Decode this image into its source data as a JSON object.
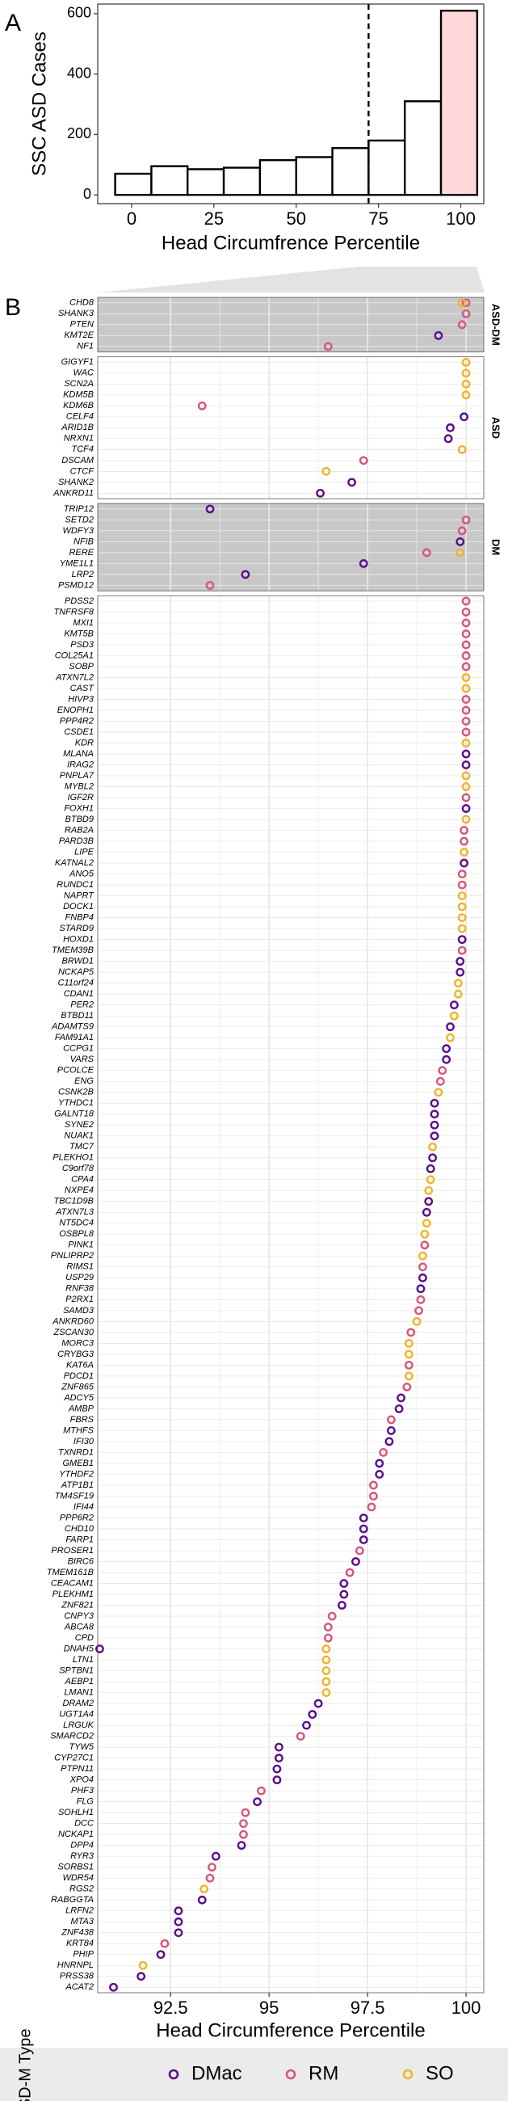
{
  "chart_data": [
    {
      "type": "histogram",
      "panel_label": "A",
      "bins": [
        -5,
        6,
        17,
        28,
        39,
        50,
        61,
        72,
        83,
        94,
        105
      ],
      "values": [
        70,
        95,
        85,
        90,
        115,
        125,
        155,
        180,
        310,
        610
      ],
      "colors": [
        "#ffffff",
        "#ffffff",
        "#ffffff",
        "#ffffff",
        "#ffffff",
        "#ffffff",
        "#ffffff",
        "#ffffff",
        "#ffffff",
        "#ffd9d9"
      ],
      "edge_color": "#000000",
      "vline": 72,
      "xlim": [
        -10.3,
        107
      ],
      "xticks": [
        0,
        25,
        50,
        75,
        100
      ],
      "ylim": [
        -29,
        632
      ],
      "yticks": [
        0,
        200,
        400,
        600
      ],
      "xlabel": "Head Circumfrence Percentile",
      "ylabel": "SSC ASD Cases"
    },
    {
      "type": "dot",
      "panel_label": "B",
      "series": [
        {
          "name": "DMac",
          "color": "#5b0f8a"
        },
        {
          "name": "RM",
          "color": "#d4587a"
        },
        {
          "name": "SO",
          "color": "#f0b429"
        }
      ],
      "facets": [
        {
          "label": "ASD-DM",
          "background": "#c8c8c8",
          "categories": [
            "CHD8",
            "SHANK3",
            "PTEN",
            "KMT2E",
            "NF1"
          ],
          "series": [
            {
              "values": [
                null,
                null,
                null,
                99.3,
                null
              ]
            },
            {
              "values": [
                100,
                100,
                99.9,
                null,
                96.5
              ]
            },
            {
              "values": [
                99.9,
                null,
                null,
                null,
                null
              ]
            }
          ]
        },
        {
          "label": "ASD",
          "background": "#ffffff",
          "categories": [
            "GIGYF1",
            "WAC",
            "SCN2A",
            "KDM5B",
            "KDM6B",
            "CELF4",
            "ARID1B",
            "NRXN1",
            "TCF4",
            "DSCAM",
            "CTCF",
            "SHANK2",
            "ANKRD11"
          ],
          "series": [
            {
              "values": [
                null,
                null,
                null,
                null,
                null,
                99.95,
                99.6,
                99.55,
                null,
                null,
                null,
                97.1,
                96.3
              ]
            },
            {
              "values": [
                null,
                null,
                null,
                null,
                93.3,
                null,
                null,
                null,
                null,
                97.4,
                null,
                null,
                null
              ]
            },
            {
              "values": [
                100,
                100,
                100,
                100,
                null,
                null,
                null,
                null,
                99.9,
                null,
                96.45,
                null,
                null
              ]
            }
          ]
        },
        {
          "label": "DM",
          "background": "#c8c8c8",
          "categories": [
            "TRIP12",
            "SETD2",
            "WDFY3",
            "NFIB",
            "RERE",
            "YME1L1",
            "LRP2",
            "PSMD12"
          ],
          "series": [
            {
              "values": [
                93.5,
                null,
                null,
                99.85,
                null,
                97.4,
                94.4,
                null
              ]
            },
            {
              "values": [
                null,
                100,
                99.9,
                null,
                99,
                null,
                null,
                93.5
              ]
            },
            {
              "values": [
                null,
                null,
                null,
                null,
                99.85,
                null,
                null,
                null
              ]
            }
          ]
        },
        {
          "background": "#ffffff",
          "categories": [
            "PDSS2",
            "TNFRSF8",
            "MXI1",
            "KMT5B",
            "PSD3",
            "COL25A1",
            "SOBP",
            "ATXN7L2",
            "CAST",
            "HIVP3",
            "ENOPH1",
            "PPP4R2",
            "CSDE1",
            "KDR",
            "MLANA",
            "IRAG2",
            "PNPLA7",
            "MYBL2",
            "IGF2R",
            "FOXH1",
            "BTBD9",
            "RAB2A",
            "PARD3B",
            "LIPE",
            "KATNAL2",
            "ANO5",
            "RUNDC1",
            "NAPRT",
            "DOCK1",
            "FNBP4",
            "STARD9",
            "HOXD1",
            "TMEM39B",
            "BRWD1",
            "NCKAP5",
            "C11orf24",
            "CDAN1",
            "PER2",
            "BTBD11",
            "ADAMTS9",
            "FAM91A1",
            "CCPG1",
            "VARS",
            "PCOLCE",
            "ENG",
            "CSNK2B",
            "YTHDC1",
            "GALNT18",
            "SYNE2",
            "NUAK1",
            "TMC7",
            "PLEKHO1",
            "C9orf78",
            "CPA4",
            "NXPE4",
            "TBC1D9B",
            "ATXN7L3",
            "NT5DC4",
            "OSBPL8",
            "PINK1",
            "PNLIPRP2",
            "RIMS1",
            "USP29",
            "RNF38",
            "P2RX1",
            "SAMD3",
            "ANKRD60",
            "ZSCAN30",
            "MORC3",
            "CRYBG3",
            "KAT6A",
            "PDCD1",
            "ZNF865",
            "ADCY5",
            "AMBP",
            "FBRS",
            "MTHFS",
            "IFI30",
            "TXNRD1",
            "GMEB1",
            "YTHDF2",
            "ATP1B1",
            "TM4SF19",
            "IFI44",
            "PPP6R2",
            "CHD10",
            "FARP1",
            "PROSER1",
            "BIRC6",
            "TMEM161B",
            "CEACAM1",
            "PLEKHM1",
            "ZNF821",
            "CNPY3",
            "ABCA8",
            "CPD",
            "DNAH5",
            "LTN1",
            "SPTBN1",
            "AEBP1",
            "LMAN1",
            "DRAM2",
            "UGT1A4",
            "LRGUK",
            "SMARCD2",
            "TYW5",
            "CYP27C1",
            "PTPN11",
            "XPO4",
            "PHF3",
            "FLG",
            "SOHLH1",
            "DCC",
            "NCKAP1",
            "DPP4",
            "RYR3",
            "SORBS1",
            "WDR54",
            "RGS2",
            "RABGGTA",
            "LRFN2",
            "MTA3",
            "ZNF438",
            "KRT84",
            "PHIP",
            "HNRNPL",
            "PRSS38",
            "ACAT2"
          ],
          "series": [
            {
              "values": [
                null,
                null,
                null,
                null,
                null,
                null,
                null,
                null,
                null,
                null,
                null,
                null,
                null,
                null,
                100,
                100,
                null,
                null,
                null,
                100,
                null,
                null,
                null,
                null,
                99.95,
                null,
                null,
                null,
                null,
                null,
                null,
                99.9,
                null,
                99.85,
                99.85,
                null,
                null,
                99.7,
                null,
                99.6,
                null,
                99.5,
                99.5,
                null,
                null,
                null,
                99.2,
                99.2,
                99.2,
                99.2,
                null,
                99.15,
                99.1,
                null,
                null,
                99.05,
                99,
                null,
                null,
                null,
                null,
                null,
                98.9,
                98.85,
                null,
                null,
                null,
                null,
                null,
                null,
                null,
                null,
                null,
                98.35,
                98.3,
                null,
                98.1,
                98.05,
                null,
                97.8,
                97.8,
                null,
                null,
                null,
                97.4,
                97.4,
                97.4,
                null,
                97.2,
                null,
                96.9,
                96.9,
                96.85,
                null,
                null,
                null,
                90.7,
                null,
                null,
                null,
                null,
                96.25,
                96.1,
                95.95,
                null,
                95.25,
                95.25,
                95.2,
                95.2,
                null,
                94.7,
                null,
                null,
                null,
                94.3,
                93.65,
                null,
                null,
                null,
                93.3,
                92.7,
                92.7,
                92.7,
                null,
                92.25,
                null,
                91.75,
                91.05
              ]
            },
            {
              "values": [
                100,
                100,
                100,
                100,
                100,
                100,
                100,
                null,
                null,
                100,
                100,
                100,
                100,
                null,
                null,
                null,
                null,
                null,
                100,
                null,
                null,
                99.95,
                99.95,
                null,
                null,
                99.9,
                99.9,
                null,
                null,
                null,
                null,
                null,
                99.9,
                null,
                null,
                null,
                null,
                null,
                null,
                null,
                null,
                null,
                null,
                99.4,
                99.35,
                null,
                null,
                null,
                null,
                null,
                null,
                null,
                null,
                null,
                null,
                null,
                null,
                null,
                null,
                98.95,
                null,
                98.9,
                null,
                null,
                98.85,
                98.8,
                null,
                98.6,
                null,
                null,
                98.55,
                null,
                98.5,
                null,
                null,
                98.1,
                null,
                null,
                97.9,
                null,
                null,
                97.65,
                97.65,
                97.6,
                null,
                null,
                null,
                97.3,
                null,
                97.05,
                null,
                null,
                null,
                96.6,
                96.5,
                96.5,
                null,
                null,
                null,
                null,
                null,
                null,
                null,
                null,
                95.8,
                null,
                null,
                null,
                null,
                94.8,
                null,
                94.4,
                94.35,
                94.35,
                null,
                null,
                93.55,
                93.5,
                null,
                null,
                null,
                null,
                null,
                92.35,
                null,
                null,
                null,
                null
              ]
            },
            {
              "values": [
                null,
                null,
                null,
                null,
                null,
                null,
                null,
                100,
                100,
                null,
                null,
                null,
                null,
                100,
                null,
                null,
                100,
                100,
                null,
                null,
                100,
                null,
                null,
                99.95,
                null,
                null,
                null,
                99.9,
                99.9,
                99.9,
                99.9,
                null,
                null,
                null,
                null,
                99.8,
                99.8,
                null,
                99.7,
                null,
                99.6,
                null,
                null,
                null,
                null,
                99.3,
                null,
                null,
                null,
                null,
                99.15,
                null,
                null,
                99.1,
                99.05,
                null,
                null,
                99,
                98.95,
                null,
                98.9,
                null,
                null,
                null,
                null,
                null,
                98.75,
                null,
                98.55,
                98.55,
                null,
                98.55,
                null,
                null,
                null,
                null,
                null,
                null,
                null,
                null,
                null,
                null,
                null,
                null,
                null,
                null,
                null,
                null,
                null,
                null,
                null,
                null,
                null,
                null,
                null,
                null,
                96.45,
                96.45,
                96.45,
                96.45,
                96.45,
                null,
                null,
                null,
                null,
                null,
                null,
                null,
                null,
                null,
                null,
                null,
                null,
                null,
                null,
                null,
                null,
                null,
                93.35,
                null,
                null,
                null,
                null,
                null,
                null,
                91.8,
                null,
                null
              ]
            }
          ]
        }
      ],
      "xlim": [
        90.65,
        100.45
      ],
      "xticks": [
        92.5,
        95,
        97.5,
        100
      ],
      "grid": true,
      "xlabel": "Head Circumference Percentile",
      "legend_title": "ASD-M Type",
      "legend_position": "bottom"
    }
  ]
}
